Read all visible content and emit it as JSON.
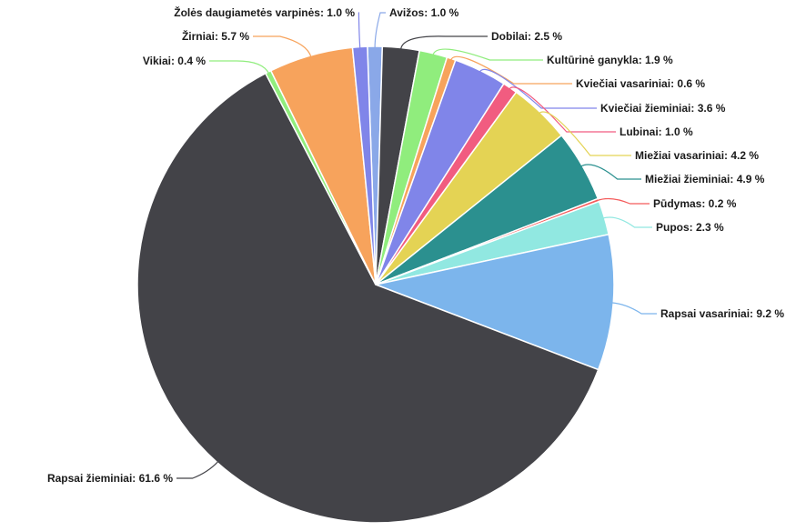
{
  "chart_data": {
    "type": "pie",
    "title": "",
    "start_angle_deg": -2,
    "slices": [
      {
        "label": "Avižos",
        "value": 1.0,
        "color": "#8aa8e8"
      },
      {
        "label": "Dobilai",
        "value": 2.5,
        "color": "#434348"
      },
      {
        "label": "Kultūrinė ganykla",
        "value": 1.9,
        "color": "#90ed7d"
      },
      {
        "label": "Kviečiai vasariniai",
        "value": 0.6,
        "color": "#f7a35c"
      },
      {
        "label": "Kviečiai žieminiai",
        "value": 3.6,
        "color": "#8085e9"
      },
      {
        "label": "Lubinai",
        "value": 1.0,
        "color": "#f15c80"
      },
      {
        "label": "Miežiai vasariniai",
        "value": 4.2,
        "color": "#e4d354"
      },
      {
        "label": "Miežiai žieminiai",
        "value": 4.9,
        "color": "#2b908f"
      },
      {
        "label": "Pūdymas",
        "value": 0.2,
        "color": "#f45b5b"
      },
      {
        "label": "Pupos",
        "value": 2.3,
        "color": "#91e8e1"
      },
      {
        "label": "Rapsai vasariniai",
        "value": 9.2,
        "color": "#7cb5ec"
      },
      {
        "label": "Rapsai žieminiai",
        "value": 61.6,
        "color": "#434348"
      },
      {
        "label": "Vikiai",
        "value": 0.4,
        "color": "#90ed7d"
      },
      {
        "label": "Žirniai",
        "value": 5.7,
        "color": "#f7a35c"
      },
      {
        "label": "Žolės daugiametės varpinės",
        "value": 1.0,
        "color": "#8085e9"
      }
    ],
    "value_suffix": " %",
    "label_format": "{label}: {value}{suffix}"
  }
}
